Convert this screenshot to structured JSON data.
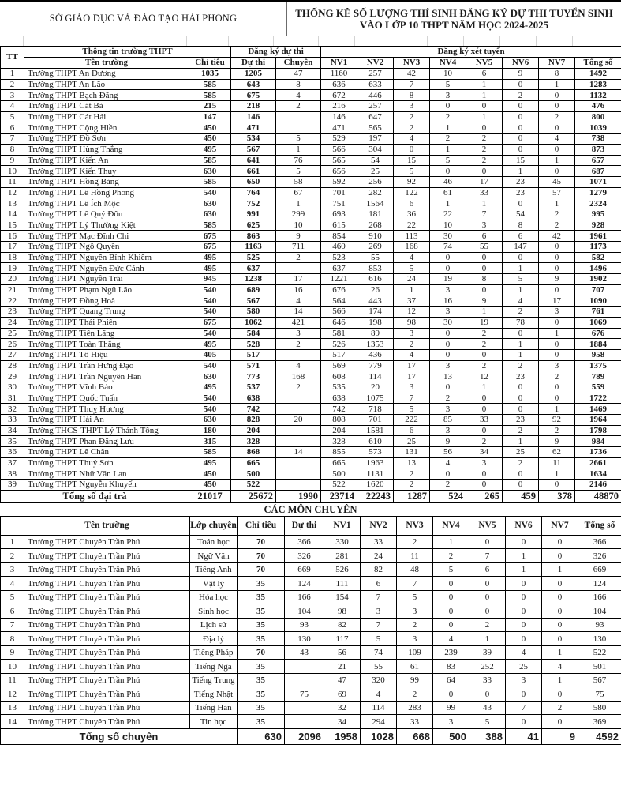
{
  "header": {
    "org": "SỞ GIÁO DỤC VÀ ĐÀO TẠO HẢI PHÒNG",
    "title_line1": "THỐNG KÊ SỐ LƯỢNG THÍ SINH ĐĂNG KÝ DỰ THI TUYỂN SINH",
    "title_line2": "VÀO LỚP 10 THPT NĂM HỌC 2024-2025"
  },
  "main_table": {
    "headers": {
      "tt": "TT",
      "school_info": "Thông tin trường THPT",
      "exam_reg": "Đăng ký dự thi",
      "admission_reg": "Đăng ký xét tuyển",
      "school_name": "Tên trường",
      "quota": "Chỉ tiêu",
      "exam": "Dự thi",
      "specialized": "Chuyên",
      "nv": [
        "NV1",
        "NV2",
        "NV3",
        "NV4",
        "NV5",
        "NV6",
        "NV7"
      ],
      "total": "Tổng số"
    },
    "rows": [
      [
        "1",
        "Trường THPT An Dương",
        "1035",
        "1205",
        "47",
        "1160",
        "257",
        "42",
        "10",
        "6",
        "9",
        "8",
        "1492"
      ],
      [
        "2",
        "Trường THPT An Lão",
        "585",
        "643",
        "8",
        "636",
        "633",
        "7",
        "5",
        "1",
        "0",
        "1",
        "1283"
      ],
      [
        "3",
        "Trường THPT Bạch Đằng",
        "585",
        "675",
        "4",
        "672",
        "446",
        "8",
        "3",
        "1",
        "2",
        "0",
        "1132"
      ],
      [
        "4",
        "Trường THPT Cát Bà",
        "215",
        "218",
        "2",
        "216",
        "257",
        "3",
        "0",
        "0",
        "0",
        "0",
        "476"
      ],
      [
        "5",
        "Trường THPT Cát Hải",
        "147",
        "146",
        "",
        "146",
        "647",
        "2",
        "2",
        "1",
        "0",
        "2",
        "800"
      ],
      [
        "6",
        "Trường THPT Cộng Hiền",
        "450",
        "471",
        "",
        "471",
        "565",
        "2",
        "1",
        "0",
        "0",
        "0",
        "1039"
      ],
      [
        "7",
        "Trường THPT Đồ Sơn",
        "450",
        "534",
        "5",
        "529",
        "197",
        "4",
        "2",
        "2",
        "0",
        "4",
        "738"
      ],
      [
        "8",
        "Trường THPT Hùng Thắng",
        "495",
        "567",
        "1",
        "566",
        "304",
        "0",
        "1",
        "2",
        "0",
        "0",
        "873"
      ],
      [
        "9",
        "Trường THPT Kiến An",
        "585",
        "641",
        "76",
        "565",
        "54",
        "15",
        "5",
        "2",
        "15",
        "1",
        "657"
      ],
      [
        "10",
        "Trường THPT Kiến Thuỵ",
        "630",
        "661",
        "5",
        "656",
        "25",
        "5",
        "0",
        "0",
        "1",
        "0",
        "687"
      ],
      [
        "11",
        "Trường THPT Hồng Bàng",
        "585",
        "650",
        "58",
        "592",
        "256",
        "92",
        "46",
        "17",
        "23",
        "45",
        "1071"
      ],
      [
        "12",
        "Trường THPT Lê Hồng Phong",
        "540",
        "764",
        "67",
        "701",
        "282",
        "122",
        "61",
        "33",
        "23",
        "57",
        "1279"
      ],
      [
        "13",
        "Trường THPT Lê Ích Mộc",
        "630",
        "752",
        "1",
        "751",
        "1564",
        "6",
        "1",
        "1",
        "0",
        "1",
        "2324"
      ],
      [
        "14",
        "Trường THPT Lê Quý Đôn",
        "630",
        "991",
        "299",
        "693",
        "181",
        "36",
        "22",
        "7",
        "54",
        "2",
        "995"
      ],
      [
        "15",
        "Trường THPT Lý Thường Kiệt",
        "585",
        "625",
        "10",
        "615",
        "268",
        "22",
        "10",
        "3",
        "8",
        "2",
        "928"
      ],
      [
        "16",
        "Trường THPT Mạc Đĩnh Chi",
        "675",
        "863",
        "9",
        "854",
        "910",
        "113",
        "30",
        "6",
        "6",
        "42",
        "1961"
      ],
      [
        "17",
        "Trường THPT Ngô Quyền",
        "675",
        "1163",
        "711",
        "460",
        "269",
        "168",
        "74",
        "55",
        "147",
        "0",
        "1173"
      ],
      [
        "18",
        "Trường THPT Nguyễn Bỉnh Khiêm",
        "495",
        "525",
        "2",
        "523",
        "55",
        "4",
        "0",
        "0",
        "0",
        "0",
        "582"
      ],
      [
        "19",
        "Trường THPT Nguyễn Đức Cảnh",
        "495",
        "637",
        "",
        "637",
        "853",
        "5",
        "0",
        "0",
        "1",
        "0",
        "1496"
      ],
      [
        "20",
        "Trường THPT Nguyễn Trãi",
        "945",
        "1238",
        "17",
        "1221",
        "616",
        "24",
        "19",
        "8",
        "5",
        "9",
        "1902"
      ],
      [
        "21",
        "Trường THPT Phạm Ngũ Lão",
        "540",
        "689",
        "16",
        "676",
        "26",
        "1",
        "3",
        "0",
        "1",
        "0",
        "707"
      ],
      [
        "22",
        "Trường THPT Đồng Hoà",
        "540",
        "567",
        "4",
        "564",
        "443",
        "37",
        "16",
        "9",
        "4",
        "17",
        "1090"
      ],
      [
        "23",
        "Trường THPT Quang Trung",
        "540",
        "580",
        "14",
        "566",
        "174",
        "12",
        "3",
        "1",
        "2",
        "3",
        "761"
      ],
      [
        "24",
        "Trường THPT Thái Phiên",
        "675",
        "1062",
        "421",
        "646",
        "198",
        "98",
        "30",
        "19",
        "78",
        "0",
        "1069"
      ],
      [
        "25",
        "Trường THPT Tiên Lãng",
        "540",
        "584",
        "3",
        "581",
        "89",
        "3",
        "0",
        "2",
        "0",
        "1",
        "676"
      ],
      [
        "26",
        "Trường THPT Toàn Thắng",
        "495",
        "528",
        "2",
        "526",
        "1353",
        "2",
        "0",
        "2",
        "1",
        "0",
        "1884"
      ],
      [
        "27",
        "Trường THPT Tô Hiệu",
        "405",
        "517",
        "",
        "517",
        "436",
        "4",
        "0",
        "0",
        "1",
        "0",
        "958"
      ],
      [
        "28",
        "Trường THPT Trần Hưng Đạo",
        "540",
        "571",
        "4",
        "569",
        "779",
        "17",
        "3",
        "2",
        "2",
        "3",
        "1375"
      ],
      [
        "29",
        "Trường THPT Trần Nguyên Hãn",
        "630",
        "773",
        "168",
        "608",
        "114",
        "17",
        "13",
        "12",
        "23",
        "2",
        "789"
      ],
      [
        "30",
        "Trường THPT Vĩnh Bảo",
        "495",
        "537",
        "2",
        "535",
        "20",
        "3",
        "0",
        "1",
        "0",
        "0",
        "559"
      ],
      [
        "31",
        "Trường THPT Quốc Tuấn",
        "540",
        "638",
        "",
        "638",
        "1075",
        "7",
        "2",
        "0",
        "0",
        "0",
        "1722"
      ],
      [
        "32",
        "Trường THPT Thuỵ Hương",
        "540",
        "742",
        "",
        "742",
        "718",
        "5",
        "3",
        "0",
        "0",
        "1",
        "1469"
      ],
      [
        "33",
        "Trường THPT Hải An",
        "630",
        "828",
        "20",
        "808",
        "701",
        "222",
        "85",
        "33",
        "23",
        "92",
        "1964"
      ],
      [
        "34",
        "Trường THCS-THPT Lý Thánh Tông",
        "180",
        "204",
        "",
        "204",
        "1581",
        "6",
        "3",
        "0",
        "2",
        "2",
        "1798"
      ],
      [
        "35",
        "Trường THPT Phan Đăng Lưu",
        "315",
        "328",
        "",
        "328",
        "610",
        "25",
        "9",
        "2",
        "1",
        "9",
        "984"
      ],
      [
        "36",
        "Trường THPT Lê Chân",
        "585",
        "868",
        "14",
        "855",
        "573",
        "131",
        "56",
        "34",
        "25",
        "62",
        "1736"
      ],
      [
        "37",
        "Trường THPT Thuỷ Sơn",
        "495",
        "665",
        "",
        "665",
        "1963",
        "13",
        "4",
        "3",
        "2",
        "11",
        "2661"
      ],
      [
        "38",
        "Trường THPT Nhữ Văn Lan",
        "450",
        "500",
        "",
        "500",
        "1131",
        "2",
        "0",
        "0",
        "0",
        "1",
        "1634"
      ],
      [
        "39",
        "Trường THPT Nguyễn Khuyến",
        "450",
        "522",
        "",
        "522",
        "1620",
        "2",
        "2",
        "0",
        "0",
        "0",
        "2146"
      ]
    ],
    "total_label": "Tổng số đại trà",
    "total_values": [
      "21017",
      "25672",
      "1990",
      "23714",
      "22243",
      "1287",
      "524",
      "265",
      "459",
      "378",
      "48870"
    ]
  },
  "special_section": {
    "title": "CÁC MÔN CHUYÊN",
    "headers": {
      "school_name": "Tên trường",
      "class": "Lớp chuyên",
      "quota": "Chỉ tiêu",
      "exam": "Dự thi",
      "nv": [
        "NV1",
        "NV2",
        "NV3",
        "NV4",
        "NV5",
        "NV6",
        "NV7"
      ],
      "total": "Tổng số"
    },
    "rows": [
      [
        "1",
        "Trường THPT Chuyên Trần Phú",
        "Toán học",
        "70",
        "366",
        "330",
        "33",
        "2",
        "1",
        "0",
        "0",
        "0",
        "366"
      ],
      [
        "2",
        "Trường THPT Chuyên Trần Phú",
        "Ngữ Văn",
        "70",
        "326",
        "281",
        "24",
        "11",
        "2",
        "7",
        "1",
        "0",
        "326"
      ],
      [
        "3",
        "Trường THPT Chuyên Trần Phú",
        "Tiếng Anh",
        "70",
        "669",
        "526",
        "82",
        "48",
        "5",
        "6",
        "1",
        "1",
        "669"
      ],
      [
        "4",
        "Trường THPT Chuyên Trần Phú",
        "Vật lý",
        "35",
        "124",
        "111",
        "6",
        "7",
        "0",
        "0",
        "0",
        "0",
        "124"
      ],
      [
        "5",
        "Trường THPT Chuyên Trần Phú",
        "Hóa học",
        "35",
        "166",
        "154",
        "7",
        "5",
        "0",
        "0",
        "0",
        "0",
        "166"
      ],
      [
        "6",
        "Trường THPT Chuyên Trần Phú",
        "Sinh học",
        "35",
        "104",
        "98",
        "3",
        "3",
        "0",
        "0",
        "0",
        "0",
        "104"
      ],
      [
        "7",
        "Trường THPT Chuyên Trần Phú",
        "Lịch sử",
        "35",
        "93",
        "82",
        "7",
        "2",
        "0",
        "2",
        "0",
        "0",
        "93"
      ],
      [
        "8",
        "Trường THPT Chuyên Trần Phú",
        "Địa lý",
        "35",
        "130",
        "117",
        "5",
        "3",
        "4",
        "1",
        "0",
        "0",
        "130"
      ],
      [
        "9",
        "Trường THPT Chuyên Trần Phú",
        "Tiếng Pháp",
        "70",
        "43",
        "56",
        "74",
        "109",
        "239",
        "39",
        "4",
        "1",
        "522"
      ],
      [
        "10",
        "Trường THPT Chuyên Trần Phú",
        "Tiếng Nga",
        "35",
        "",
        "21",
        "55",
        "61",
        "83",
        "252",
        "25",
        "4",
        "501"
      ],
      [
        "11",
        "Trường THPT Chuyên Trần Phú",
        "Tiếng Trung",
        "35",
        "",
        "47",
        "320",
        "99",
        "64",
        "33",
        "3",
        "1",
        "567"
      ],
      [
        "12",
        "Trường THPT Chuyên Trần Phú",
        "Tiếng Nhật",
        "35",
        "75",
        "69",
        "4",
        "2",
        "0",
        "0",
        "0",
        "0",
        "75"
      ],
      [
        "13",
        "Trường THPT Chuyên Trần Phú",
        "Tiếng Hàn",
        "35",
        "",
        "32",
        "114",
        "283",
        "99",
        "43",
        "7",
        "2",
        "580"
      ],
      [
        "14",
        "Trường THPT Chuyên Trần Phú",
        "Tin học",
        "35",
        "",
        "34",
        "294",
        "33",
        "3",
        "5",
        "0",
        "0",
        "369"
      ]
    ],
    "total_label": "Tổng số chuyên",
    "total_values": [
      "630",
      "2096",
      "1958",
      "1028",
      "668",
      "500",
      "388",
      "41",
      "9",
      "4592"
    ]
  }
}
